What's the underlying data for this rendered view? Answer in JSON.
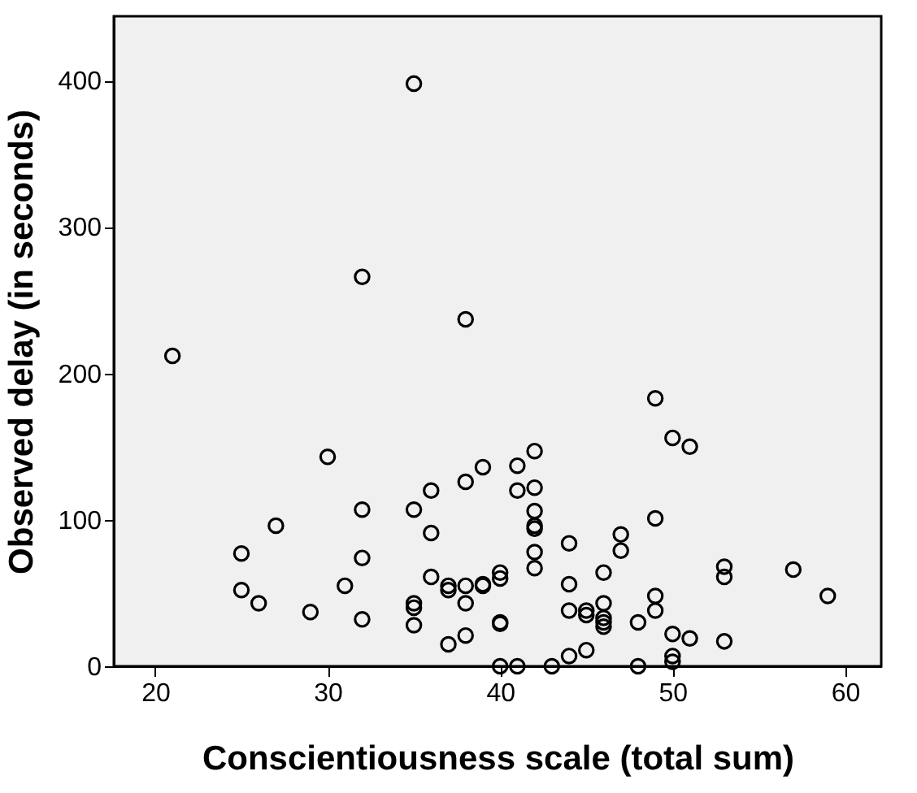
{
  "chart_data": {
    "type": "scatter",
    "xlabel": "Conscientiousness scale (total sum)",
    "ylabel": "Observed delay (in seconds)",
    "xlim": [
      17.6,
      62.1
    ],
    "ylim": [
      0,
      444
    ],
    "xticks": [
      20,
      30,
      40,
      50,
      60
    ],
    "yticks": [
      0,
      100,
      200,
      300,
      400
    ],
    "grid": false,
    "legend": false,
    "marker": "circle",
    "series": [
      {
        "color": "#000000",
        "x": [
          21,
          35,
          32,
          38,
          49,
          50,
          51,
          30,
          32,
          27,
          25,
          32,
          31,
          25,
          26,
          29,
          32,
          35,
          36,
          38,
          39,
          41,
          42,
          41,
          42,
          42,
          42,
          42,
          36,
          42,
          42,
          44,
          47,
          36,
          37,
          37,
          38,
          39,
          39,
          40,
          40,
          46,
          44,
          35,
          35,
          35,
          38,
          40,
          40,
          38,
          37,
          44,
          45,
          45,
          46,
          46,
          46,
          46,
          44,
          45,
          40,
          41,
          43,
          47,
          49,
          49,
          49,
          48,
          50,
          51,
          50,
          50,
          48,
          53,
          53,
          53,
          57,
          59
        ],
        "values": [
          212,
          398,
          266,
          237,
          183,
          156,
          150,
          143,
          107,
          96,
          77,
          74,
          55,
          52,
          43,
          37,
          32,
          107,
          120,
          126,
          136,
          137,
          147,
          120,
          122,
          106,
          96,
          94,
          91,
          78,
          67,
          84,
          90,
          61,
          55,
          52,
          55,
          56,
          55,
          64,
          60,
          64,
          56,
          43,
          40,
          28,
          43,
          30,
          29,
          21,
          15,
          38,
          38,
          35,
          43,
          33,
          30,
          27,
          7,
          11,
          0,
          0,
          0,
          79,
          101,
          48,
          38,
          30,
          22,
          19,
          7,
          3,
          0,
          68,
          61,
          17,
          66,
          48
        ]
      }
    ]
  }
}
